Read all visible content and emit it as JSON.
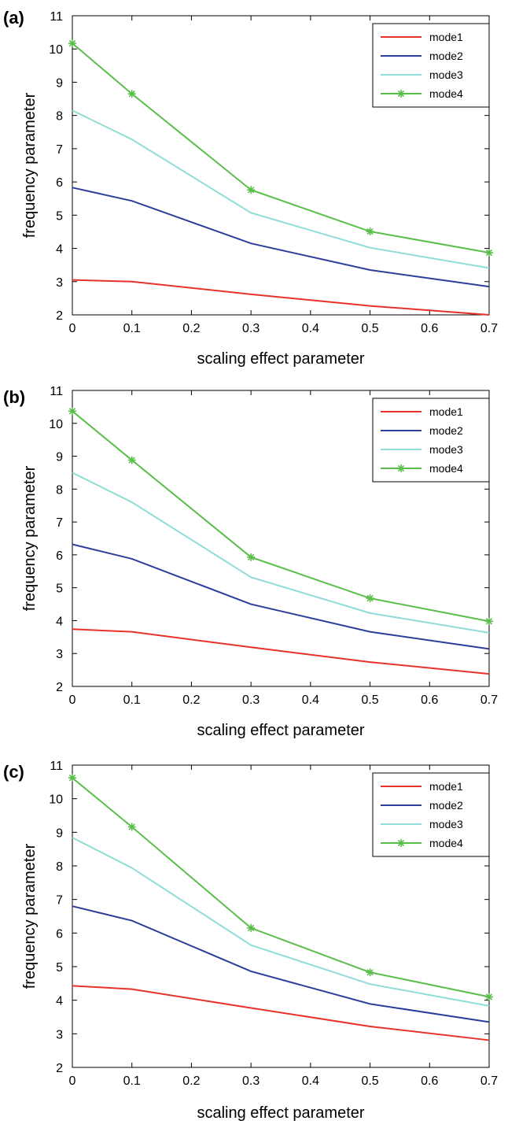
{
  "chart_data": [
    {
      "panel_label": "(a)",
      "type": "line",
      "xlabel": "scaling effect parameter",
      "ylabel": "frequency parameter",
      "xlim": [
        0,
        0.7
      ],
      "ylim": [
        2,
        11
      ],
      "x_ticks": [
        "0",
        "0.1",
        "0.2",
        "0.3",
        "0.4",
        "0.5",
        "0.6",
        "0.7"
      ],
      "y_ticks": [
        "2",
        "3",
        "4",
        "5",
        "6",
        "7",
        "8",
        "9",
        "10",
        "11"
      ],
      "legend_position": "top-right",
      "x": [
        0,
        0.1,
        0.3,
        0.5,
        0.7
      ],
      "series": [
        {
          "name": "mode1",
          "color": "#e8312a",
          "marker": "none",
          "values": [
            3.05,
            3.0,
            2.62,
            2.27,
            2.0
          ]
        },
        {
          "name": "mode2",
          "color": "#2c3e9a",
          "marker": "none",
          "values": [
            5.83,
            5.43,
            4.15,
            3.35,
            2.85
          ]
        },
        {
          "name": "mode3",
          "color": "#8fdcd8",
          "marker": "none",
          "values": [
            8.15,
            7.28,
            5.07,
            4.02,
            3.41
          ]
        },
        {
          "name": "mode4",
          "color": "#5abf4a",
          "marker": "star",
          "values": [
            10.17,
            8.65,
            5.76,
            4.51,
            3.87
          ]
        }
      ]
    },
    {
      "panel_label": "(b)",
      "type": "line",
      "xlabel": "scaling effect parameter",
      "ylabel": "frequency parameter",
      "xlim": [
        0,
        0.7
      ],
      "ylim": [
        2,
        11
      ],
      "x_ticks": [
        "0",
        "0.1",
        "0.2",
        "0.3",
        "0.4",
        "0.5",
        "0.6",
        "0.7"
      ],
      "y_ticks": [
        "2",
        "3",
        "4",
        "5",
        "6",
        "7",
        "8",
        "9",
        "10",
        "11"
      ],
      "legend_position": "top-right",
      "x": [
        0,
        0.1,
        0.3,
        0.5,
        0.7
      ],
      "series": [
        {
          "name": "mode1",
          "color": "#e8312a",
          "marker": "none",
          "values": [
            3.74,
            3.66,
            3.19,
            2.74,
            2.38
          ]
        },
        {
          "name": "mode2",
          "color": "#2c3e9a",
          "marker": "none",
          "values": [
            6.32,
            5.88,
            4.5,
            3.66,
            3.14
          ]
        },
        {
          "name": "mode3",
          "color": "#8fdcd8",
          "marker": "none",
          "values": [
            8.5,
            7.6,
            5.32,
            4.23,
            3.63
          ]
        },
        {
          "name": "mode4",
          "color": "#5abf4a",
          "marker": "star",
          "values": [
            10.37,
            8.88,
            5.93,
            4.68,
            3.98
          ]
        }
      ]
    },
    {
      "panel_label": "(c)",
      "type": "line",
      "xlabel": "scaling effect parameter",
      "ylabel": "frequency parameter",
      "xlim": [
        0,
        0.7
      ],
      "ylim": [
        2,
        11
      ],
      "x_ticks": [
        "0",
        "0.1",
        "0.2",
        "0.3",
        "0.4",
        "0.5",
        "0.6",
        "0.7"
      ],
      "y_ticks": [
        "2",
        "3",
        "4",
        "5",
        "6",
        "7",
        "8",
        "9",
        "10",
        "11"
      ],
      "legend_position": "top-right",
      "x": [
        0,
        0.1,
        0.3,
        0.5,
        0.7
      ],
      "series": [
        {
          "name": "mode1",
          "color": "#e8312a",
          "marker": "none",
          "values": [
            4.43,
            4.33,
            3.77,
            3.22,
            2.81
          ]
        },
        {
          "name": "mode2",
          "color": "#2c3e9a",
          "marker": "none",
          "values": [
            6.8,
            6.37,
            4.86,
            3.89,
            3.35
          ]
        },
        {
          "name": "mode3",
          "color": "#8fdcd8",
          "marker": "none",
          "values": [
            8.84,
            7.94,
            5.64,
            4.48,
            3.83
          ]
        },
        {
          "name": "mode4",
          "color": "#5abf4a",
          "marker": "star",
          "values": [
            10.62,
            9.16,
            6.15,
            4.83,
            4.1
          ]
        }
      ]
    }
  ]
}
